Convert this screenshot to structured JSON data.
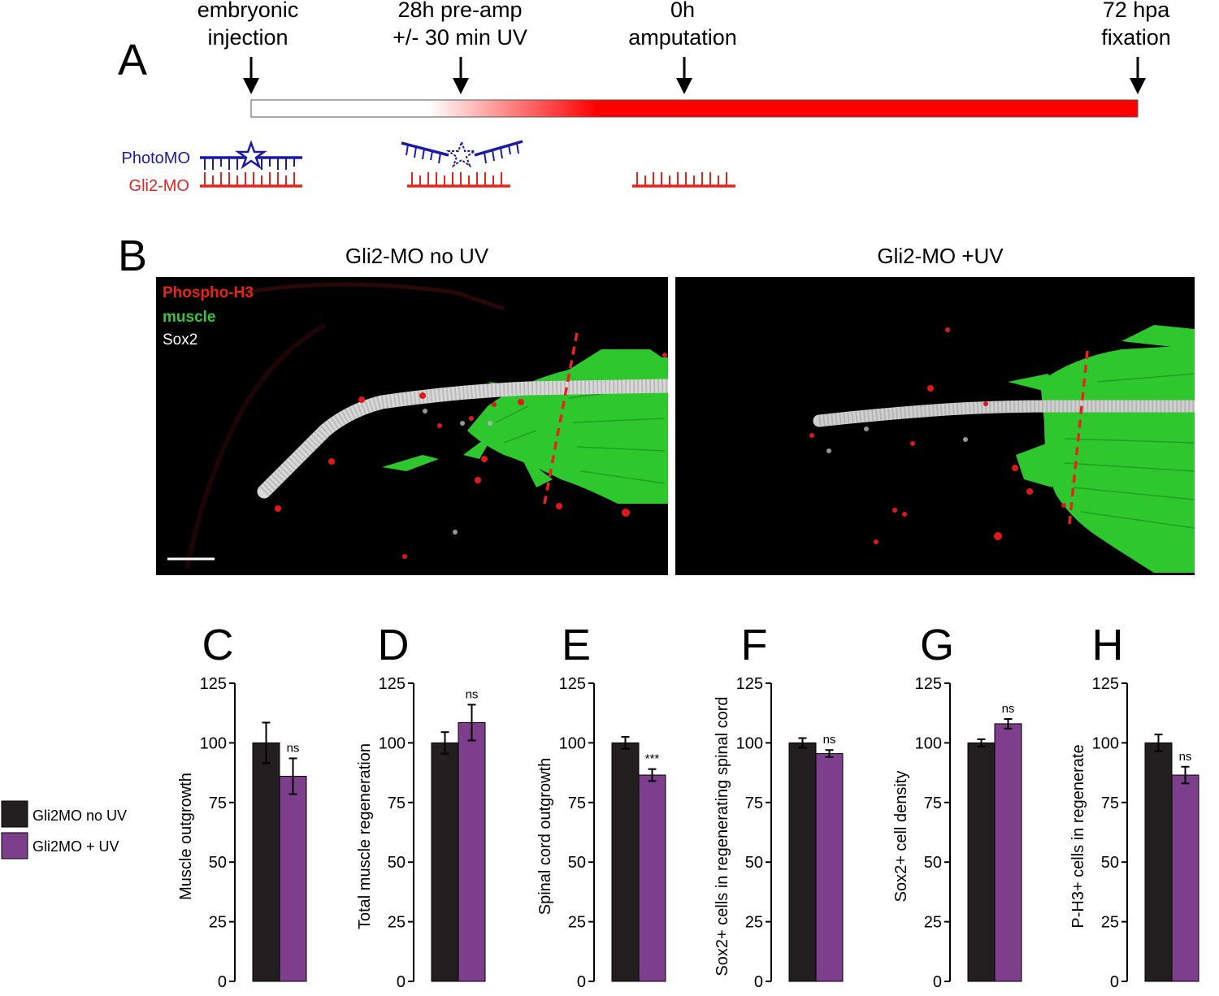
{
  "panelA": {
    "letter": "A",
    "timepoints": [
      {
        "line1": "embryonic",
        "line2": "injection"
      },
      {
        "line1": "28h pre-amp",
        "line2": "+/- 30 min UV"
      },
      {
        "line1": "0h",
        "line2": "amputation"
      },
      {
        "line1": "72 hpa",
        "line2": "fixation"
      }
    ],
    "photo_label": "PhotoMO",
    "gli_label": "Gli2-MO",
    "colors": {
      "photo": "#1a1aa8",
      "gli": "#e8231c",
      "timeline": "#ff0000"
    }
  },
  "panelB": {
    "letter": "B",
    "left_title": "Gli2-MO  no UV",
    "right_title": "Gli2-MO  +UV",
    "stains": [
      {
        "label": "Phospho-H3",
        "color": "#e8231c"
      },
      {
        "label": "muscle",
        "color": "#3cc43c"
      },
      {
        "label": "Sox2",
        "color": "#ffffff"
      }
    ]
  },
  "legend": {
    "items": [
      {
        "label": "Gli2MO no UV",
        "color": "#231f20"
      },
      {
        "label": "Gli2MO + UV",
        "color": "#7d3f8c"
      }
    ]
  },
  "chart_data": [
    {
      "type": "bar",
      "letter": "C",
      "ylabel": "Muscle outgrowth",
      "ylim": [
        0,
        125
      ],
      "ticks": [
        0,
        25,
        50,
        75,
        100,
        125
      ],
      "series": [
        {
          "name": "Gli2MO no UV",
          "values": [
            100
          ]
        },
        {
          "name": "Gli2MO + UV",
          "values": [
            86
          ]
        }
      ],
      "errors": [
        8.5,
        7.5
      ],
      "significance": "ns",
      "sig_bar": 1
    },
    {
      "type": "bar",
      "letter": "D",
      "ylabel": "Total muscle regeneration",
      "ylim": [
        0,
        125
      ],
      "ticks": [
        0,
        25,
        50,
        75,
        100,
        125
      ],
      "series": [
        {
          "name": "Gli2MO no UV",
          "values": [
            100
          ]
        },
        {
          "name": "Gli2MO + UV",
          "values": [
            108.5
          ]
        }
      ],
      "errors": [
        4.5,
        7.5
      ],
      "significance": "ns",
      "sig_bar": 1
    },
    {
      "type": "bar",
      "letter": "E",
      "ylabel": "Spinal cord outgrowth",
      "ylim": [
        0,
        125
      ],
      "ticks": [
        0,
        25,
        50,
        75,
        100,
        125
      ],
      "series": [
        {
          "name": "Gli2MO no UV",
          "values": [
            100
          ]
        },
        {
          "name": "Gli2MO + UV",
          "values": [
            86.5
          ]
        }
      ],
      "errors": [
        2.5,
        2.5
      ],
      "significance": "***",
      "sig_bar": 1
    },
    {
      "type": "bar",
      "letter": "F",
      "ylabel": "Sox2+ cells in regenerating spinal cord",
      "ylim": [
        0,
        125
      ],
      "ticks": [
        0,
        25,
        50,
        75,
        100,
        125
      ],
      "series": [
        {
          "name": "Gli2MO no UV",
          "values": [
            100
          ]
        },
        {
          "name": "Gli2MO + UV",
          "values": [
            95.5
          ]
        }
      ],
      "errors": [
        2,
        1.5
      ],
      "significance": "ns",
      "sig_bar": 1
    },
    {
      "type": "bar",
      "letter": "G",
      "ylabel": "Sox2+ cell density",
      "ylim": [
        0,
        125
      ],
      "ticks": [
        0,
        25,
        50,
        75,
        100,
        125
      ],
      "series": [
        {
          "name": "Gli2MO no UV",
          "values": [
            100
          ]
        },
        {
          "name": "Gli2MO + UV",
          "values": [
            108
          ]
        }
      ],
      "errors": [
        1.5,
        2
      ],
      "significance": "ns",
      "sig_bar": 1
    },
    {
      "type": "bar",
      "letter": "H",
      "ylabel": "P-H3+ cells in regenerate",
      "ylim": [
        0,
        125
      ],
      "ticks": [
        0,
        25,
        50,
        75,
        100,
        125
      ],
      "series": [
        {
          "name": "Gli2MO no UV",
          "values": [
            100
          ]
        },
        {
          "name": "Gli2MO + UV",
          "values": [
            86.5
          ]
        }
      ],
      "errors": [
        3.5,
        3.5
      ],
      "significance": "ns",
      "sig_bar": 1
    }
  ]
}
